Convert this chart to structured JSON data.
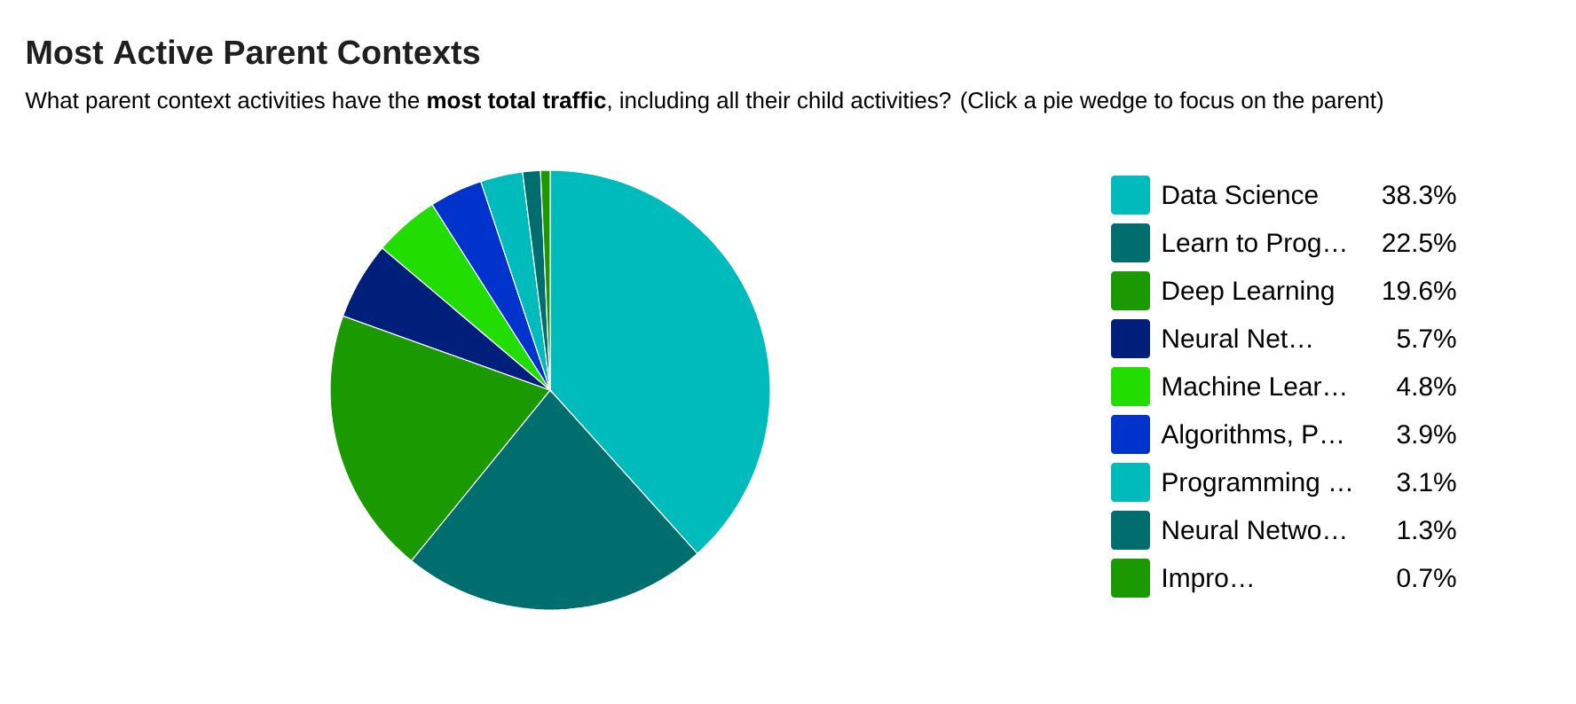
{
  "chart_data": {
    "type": "pie",
    "title": "Most Active Parent Contexts",
    "subtitle": "What parent context activities have the **most total traffic**, including all their child activities? (Click a pie wedge to focus on the parent)",
    "categories": [
      "Data Science",
      "Learn to Prog…",
      "Deep Learning",
      "Neural Net…",
      "Machine Lear…",
      "Algorithms, P…",
      "Programming …",
      "Neural Netwo…",
      "Impro…"
    ],
    "values": [
      38.3,
      22.5,
      19.6,
      5.7,
      4.8,
      3.9,
      3.1,
      1.3,
      0.7
    ],
    "value_labels": [
      "38.3%",
      "22.5%",
      "19.6%",
      "5.7%",
      "4.8%",
      "3.9%",
      "3.1%",
      "1.3%",
      "0.7%"
    ],
    "colors": [
      "#00bbbb",
      "#006e6e",
      "#1a9900",
      "#001f7a",
      "#22dd00",
      "#0033cc",
      "#00bbbb",
      "#006e6e",
      "#1a9900"
    ],
    "legend": "right"
  }
}
